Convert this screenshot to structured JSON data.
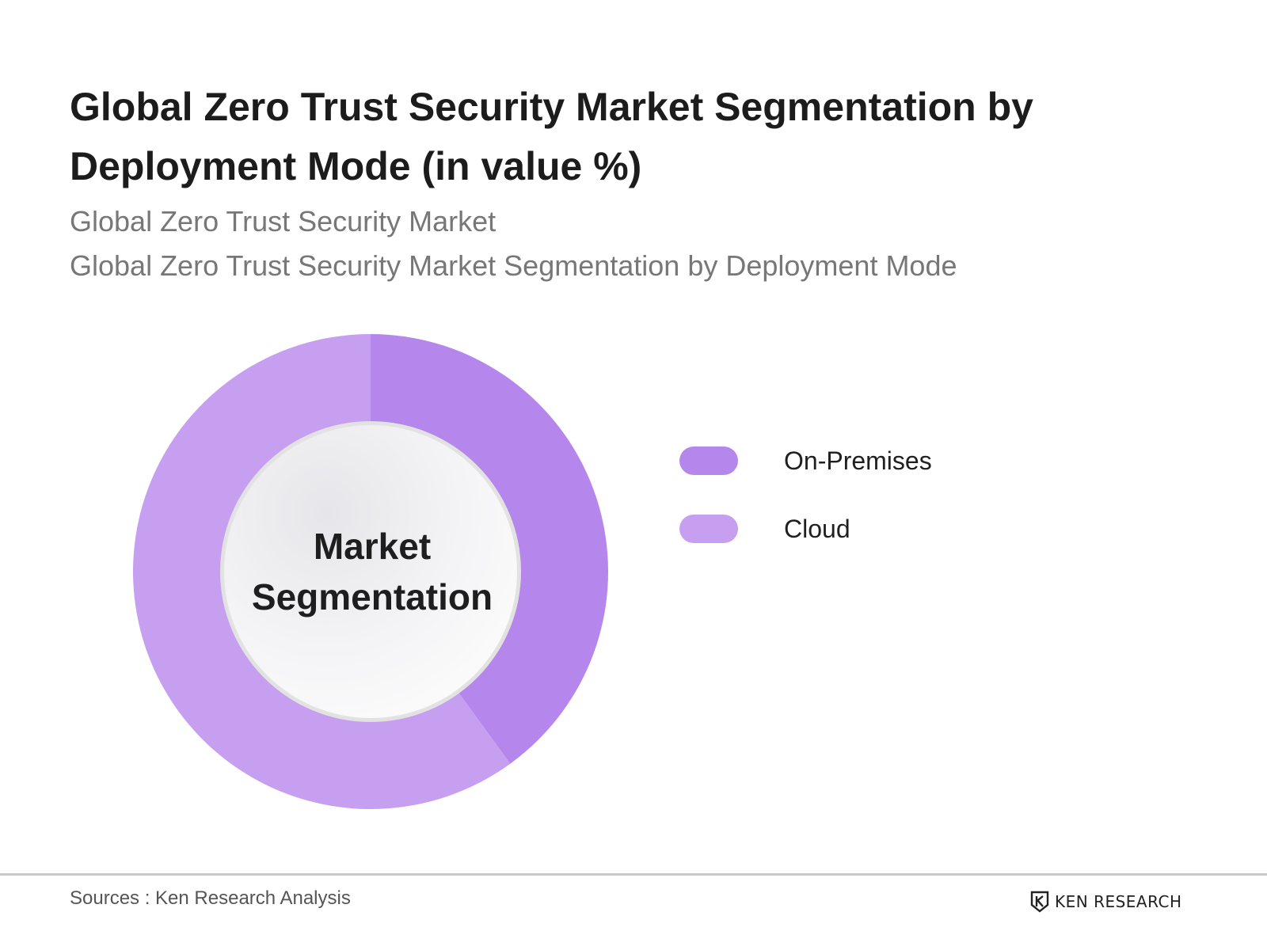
{
  "header": {
    "title": "Global Zero Trust Security Market Segmentation by Deployment Mode (in value %)",
    "subtitle_1": "Global Zero Trust Security Market",
    "subtitle_2": "Global Zero Trust Security Market Segmentation by Deployment Mode"
  },
  "chart_data": {
    "type": "pie",
    "style": "donut",
    "title": "Global Zero Trust Security Market Segmentation by Deployment Mode (in value %)",
    "center_label": "Market Segmentation",
    "categories": [
      "On-Premises",
      "Cloud"
    ],
    "values": [
      40,
      60
    ],
    "colors": [
      "#b586ec",
      "#c79ff0"
    ],
    "legend_position": "right"
  },
  "footer": {
    "source": "Sources : Ken Research Analysis",
    "brand": "KEN RESEARCH",
    "brand_icon": "ken-research-logo-icon"
  }
}
